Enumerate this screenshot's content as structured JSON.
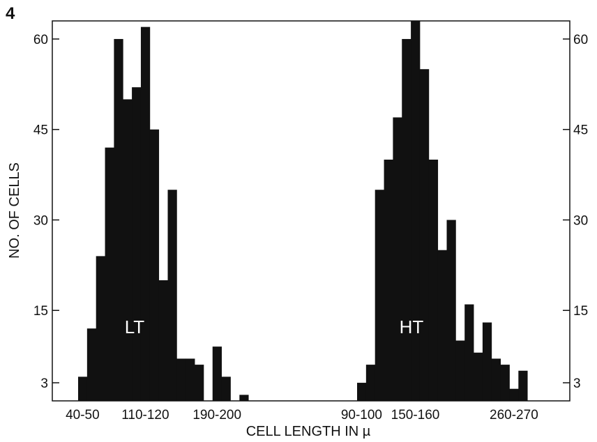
{
  "panel_label": "4",
  "chart_data": {
    "type": "bar",
    "xlabel": "CELL LENGTH IN µ",
    "ylabel": "NO. OF CELLS",
    "ylim": [
      0,
      63
    ],
    "yticks": [
      3,
      15,
      30,
      45,
      60
    ],
    "grid": false,
    "series": [
      {
        "name": "LT",
        "bin_width": 10,
        "x": [
          40,
          50,
          60,
          70,
          80,
          90,
          100,
          110,
          120,
          130,
          140,
          150,
          160,
          170,
          180,
          190,
          200,
          210,
          220,
          230,
          240
        ],
        "values": [
          4,
          12,
          24,
          42,
          60,
          50,
          52,
          62,
          45,
          20,
          35,
          7,
          7,
          6,
          0,
          9,
          4,
          0,
          1,
          0,
          0
        ]
      },
      {
        "name": "HT",
        "bin_width": 10,
        "x": [
          90,
          100,
          110,
          120,
          130,
          140,
          150,
          160,
          170,
          180,
          190,
          200,
          210,
          220,
          230,
          240,
          250,
          260,
          270
        ],
        "values": [
          3,
          6,
          35,
          40,
          47,
          60,
          63,
          55,
          40,
          25,
          30,
          10,
          16,
          8,
          13,
          7,
          6,
          2,
          5
        ]
      }
    ],
    "x_tick_labels_left": [
      "40-50",
      "110-120",
      "190-200"
    ],
    "x_tick_labels_right": [
      "90-100",
      "150-160",
      "260-270"
    ]
  }
}
